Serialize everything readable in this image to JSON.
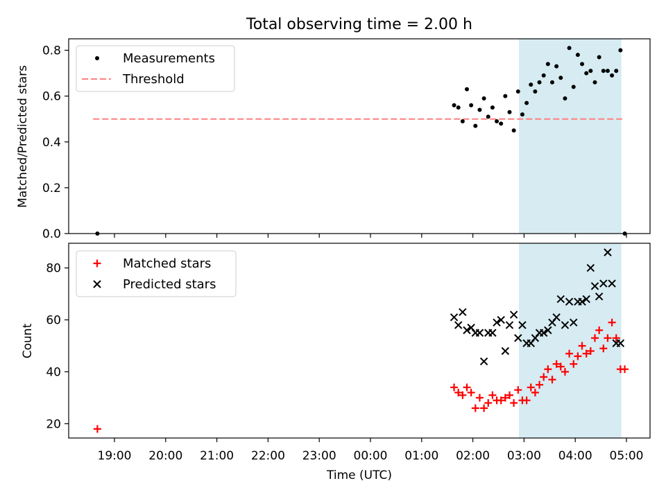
{
  "title": "Total observing time = 2.00 h",
  "colors": {
    "measurement": "#000000",
    "threshold": "#ff7f7f",
    "matched": "#ff0000",
    "predicted": "#000000",
    "shade": "#add8e6"
  },
  "chart_data": [
    {
      "type": "scatter",
      "ylabel": "Matched/Predicted stars",
      "ylim": [
        0,
        0.85
      ],
      "yticks": [
        "0.0",
        "0.2",
        "0.4",
        "0.6",
        "0.8"
      ],
      "yticks_values": [
        0,
        0.2,
        0.4,
        0.6,
        0.8
      ],
      "legend": {
        "placement": "top-left",
        "entries": [
          "Measurements",
          "Threshold"
        ]
      },
      "shaded_interval": [
        "02:54",
        "04:54"
      ],
      "threshold": {
        "value": 0.5,
        "x_range": [
          "18:35",
          "04:55"
        ]
      },
      "series": [
        {
          "name": "Measurements",
          "x": [
            "18:40",
            "01:38",
            "01:43",
            "01:48",
            "01:53",
            "01:58",
            "02:03",
            "02:08",
            "02:13",
            "02:18",
            "02:23",
            "02:28",
            "02:33",
            "02:38",
            "02:43",
            "02:48",
            "02:53",
            "02:58",
            "03:03",
            "03:08",
            "03:13",
            "03:18",
            "03:23",
            "03:28",
            "03:33",
            "03:38",
            "03:43",
            "03:48",
            "03:53",
            "03:58",
            "04:03",
            "04:08",
            "04:13",
            "04:18",
            "04:23",
            "04:28",
            "04:33",
            "04:38",
            "04:43",
            "04:48",
            "04:53",
            "04:58"
          ],
          "values": [
            0.0,
            0.56,
            0.55,
            0.49,
            0.63,
            0.56,
            0.47,
            0.54,
            0.59,
            0.51,
            0.55,
            0.49,
            0.48,
            0.6,
            0.53,
            0.45,
            0.62,
            0.52,
            0.57,
            0.65,
            0.62,
            0.66,
            0.69,
            0.74,
            0.66,
            0.73,
            0.68,
            0.59,
            0.81,
            0.64,
            0.78,
            0.74,
            0.7,
            0.71,
            0.66,
            0.77,
            0.71,
            0.71,
            0.69,
            0.71,
            0.8,
            0.0
          ]
        }
      ]
    },
    {
      "type": "scatter",
      "xlabel": "Time (UTC)",
      "ylabel": "Count",
      "ylim": [
        14.5,
        89.5
      ],
      "yticks": [
        "20",
        "40",
        "60",
        "80"
      ],
      "yticks_values": [
        20,
        40,
        60,
        80
      ],
      "xticks": [
        "19:00",
        "20:00",
        "21:00",
        "22:00",
        "23:00",
        "00:00",
        "01:00",
        "02:00",
        "03:00",
        "04:00",
        "05:00"
      ],
      "legend": {
        "placement": "top-left",
        "entries": [
          "Matched stars",
          "Predicted stars"
        ]
      },
      "shaded_interval": [
        "02:54",
        "04:54"
      ],
      "series": [
        {
          "name": "Matched stars",
          "x": [
            "18:40",
            "01:38",
            "01:43",
            "01:48",
            "01:53",
            "01:58",
            "02:03",
            "02:08",
            "02:13",
            "02:18",
            "02:23",
            "02:28",
            "02:33",
            "02:38",
            "02:43",
            "02:48",
            "02:53",
            "02:58",
            "03:03",
            "03:08",
            "03:13",
            "03:18",
            "03:23",
            "03:28",
            "03:33",
            "03:38",
            "03:43",
            "03:48",
            "03:53",
            "03:58",
            "04:03",
            "04:08",
            "04:13",
            "04:18",
            "04:23",
            "04:28",
            "04:33",
            "04:38",
            "04:43",
            "04:48",
            "04:53",
            "04:58"
          ],
          "values": [
            18,
            34,
            32,
            31,
            34,
            32,
            26,
            30,
            26,
            28,
            31,
            29,
            29,
            30,
            31,
            28,
            33,
            29,
            29,
            34,
            32,
            35,
            38,
            41,
            37,
            43,
            42,
            40,
            47,
            43,
            46,
            50,
            47,
            48,
            53,
            56,
            49,
            53,
            59,
            53,
            41,
            41
          ]
        },
        {
          "name": "Predicted stars",
          "x": [
            "01:38",
            "01:43",
            "01:48",
            "01:53",
            "01:58",
            "02:03",
            "02:08",
            "02:13",
            "02:18",
            "02:23",
            "02:28",
            "02:33",
            "02:38",
            "02:43",
            "02:48",
            "02:53",
            "02:58",
            "03:03",
            "03:08",
            "03:13",
            "03:18",
            "03:23",
            "03:28",
            "03:33",
            "03:38",
            "03:43",
            "03:48",
            "03:53",
            "03:58",
            "04:03",
            "04:08",
            "04:13",
            "04:18",
            "04:23",
            "04:28",
            "04:33",
            "04:38",
            "04:43",
            "04:48",
            "04:53"
          ],
          "values": [
            61,
            58,
            63,
            56,
            57,
            55,
            55,
            44,
            55,
            55,
            59,
            60,
            48,
            58,
            62,
            53,
            58,
            51,
            51,
            53,
            55,
            55,
            56,
            59,
            61,
            68,
            58,
            67,
            59,
            67,
            67,
            68,
            80,
            73,
            69,
            74,
            86,
            74,
            51,
            51
          ]
        }
      ]
    }
  ]
}
